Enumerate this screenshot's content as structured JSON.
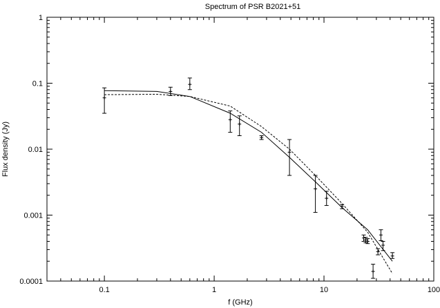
{
  "chart_data": {
    "type": "scatter",
    "title": "Spectrum of PSR B2021+51",
    "xlabel": "f (GHz)",
    "ylabel": "Flux density (Jy)",
    "xscale": "log",
    "yscale": "log",
    "xlim": [
      0.03,
      100
    ],
    "ylim": [
      0.0001,
      1
    ],
    "grid": false,
    "x_ticks": [
      {
        "value": 0.1,
        "label": "0.1"
      },
      {
        "value": 1,
        "label": "1"
      },
      {
        "value": 10,
        "label": "10"
      },
      {
        "value": 100,
        "label": "100"
      }
    ],
    "y_ticks": [
      {
        "value": 0.0001,
        "label": "0.0001"
      },
      {
        "value": 0.001,
        "label": "0.001"
      },
      {
        "value": 0.01,
        "label": "0.01"
      },
      {
        "value": 0.1,
        "label": "0.1"
      },
      {
        "value": 1,
        "label": "1"
      }
    ],
    "measurements": [
      {
        "f": 0.1,
        "s": 0.06,
        "lo": 0.035,
        "hi": 0.085
      },
      {
        "f": 0.4,
        "s": 0.075,
        "lo": 0.065,
        "hi": 0.087
      },
      {
        "f": 0.6,
        "s": 0.096,
        "lo": 0.08,
        "hi": 0.12
      },
      {
        "f": 1.4,
        "s": 0.028,
        "lo": 0.018,
        "hi": 0.038
      },
      {
        "f": 1.7,
        "s": 0.024,
        "lo": 0.016,
        "hi": 0.032
      },
      {
        "f": 2.7,
        "s": 0.015,
        "lo": 0.014,
        "hi": 0.016
      },
      {
        "f": 4.85,
        "s": 0.009,
        "lo": 0.004,
        "hi": 0.014
      },
      {
        "f": 8.35,
        "s": 0.0025,
        "lo": 0.0011,
        "hi": 0.004
      },
      {
        "f": 10.55,
        "s": 0.0018,
        "lo": 0.0014,
        "hi": 0.0023
      },
      {
        "f": 14.6,
        "s": 0.00135,
        "lo": 0.00125,
        "hi": 0.00145
      },
      {
        "f": 23.0,
        "s": 0.00045,
        "lo": 0.0004,
        "hi": 0.0005
      },
      {
        "f": 24.0,
        "s": 0.00042,
        "lo": 0.00038,
        "hi": 0.00046
      },
      {
        "f": 25.0,
        "s": 0.0004,
        "lo": 0.00037,
        "hi": 0.00044
      },
      {
        "f": 28.0,
        "s": 0.00014,
        "lo": 0.00011,
        "hi": 0.00018
      },
      {
        "f": 31.0,
        "s": 0.00028,
        "lo": 0.00025,
        "hi": 0.00031
      },
      {
        "f": 33.0,
        "s": 0.0005,
        "lo": 0.00041,
        "hi": 0.0006
      },
      {
        "f": 34.5,
        "s": 0.00035,
        "lo": 0.00029,
        "hi": 0.0004
      },
      {
        "f": 42.0,
        "s": 0.00024,
        "lo": 0.00022,
        "hi": 0.00027
      }
    ],
    "fits": [
      {
        "style": "solid",
        "points": [
          [
            0.1,
            0.077
          ],
          [
            0.3,
            0.075
          ],
          [
            0.6,
            0.063
          ],
          [
            1.4,
            0.035
          ],
          [
            2.7,
            0.018
          ],
          [
            4.85,
            0.0075
          ],
          [
            8.35,
            0.0032
          ],
          [
            14.6,
            0.0013
          ],
          [
            25.0,
            0.0006
          ],
          [
            42.0,
            0.0002
          ]
        ]
      },
      {
        "style": "dashed",
        "points": [
          [
            0.1,
            0.067
          ],
          [
            0.3,
            0.068
          ],
          [
            0.6,
            0.063
          ],
          [
            1.4,
            0.045
          ],
          [
            2.7,
            0.022
          ],
          [
            4.85,
            0.01
          ],
          [
            8.35,
            0.004
          ],
          [
            14.6,
            0.0015
          ],
          [
            25.0,
            0.00055
          ],
          [
            42.0,
            0.00013
          ]
        ]
      }
    ]
  }
}
